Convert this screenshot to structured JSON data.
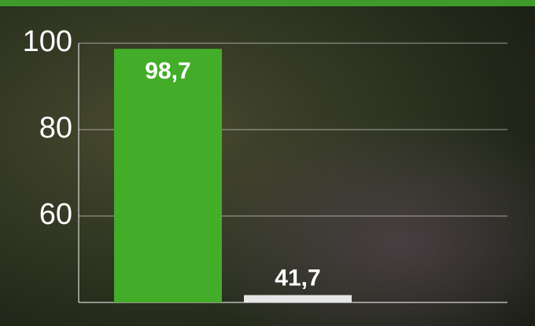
{
  "chart_data": {
    "type": "bar",
    "categories": [
      null,
      null
    ],
    "values": [
      98.7,
      41.7
    ],
    "value_labels": [
      "98,7",
      "41,7"
    ],
    "colors": [
      "#43ad2a",
      "#e6e6e6"
    ],
    "ylim": [
      40,
      100
    ],
    "yticks": [
      60,
      80,
      100
    ],
    "grid": true
  }
}
